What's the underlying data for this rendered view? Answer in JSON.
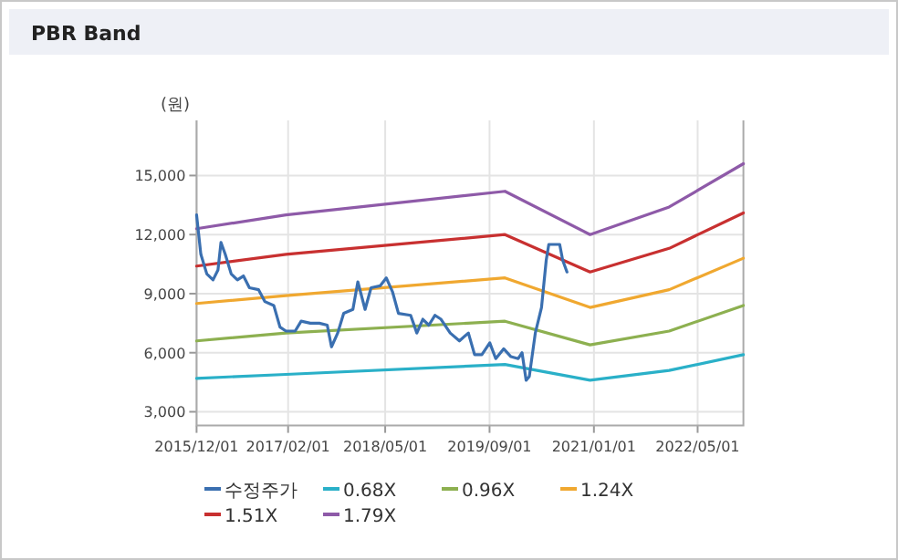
{
  "chart_data": {
    "type": "line",
    "title": "PBR Band",
    "ylabel": "(원)",
    "xlim": [
      "2015-12-01",
      "2022-12-01"
    ],
    "ylim": [
      2300,
      17800
    ],
    "xticks": [
      {
        "value": "2015-12-01",
        "label": "2015/12/01"
      },
      {
        "value": "2017-02-01",
        "label": "2017/02/01"
      },
      {
        "value": "2018-05-01",
        "label": "2018/05/01"
      },
      {
        "value": "2019-09-01",
        "label": "2019/09/01"
      },
      {
        "value": "2021-01-01",
        "label": "2021/01/01"
      },
      {
        "value": "2022-05-01",
        "label": "2022/05/01"
      }
    ],
    "yticks": [
      {
        "value": 3000,
        "label": "3,000"
      },
      {
        "value": 6000,
        "label": "6,000"
      },
      {
        "value": 9000,
        "label": "9,000"
      },
      {
        "value": 12000,
        "label": "12,000"
      },
      {
        "value": 15000,
        "label": "15,000"
      }
    ],
    "grid": true,
    "legend": "bottom",
    "series": [
      {
        "name": "수정주가",
        "color": "#3a6fb0",
        "x": [
          "2015-12-01",
          "2015-12-21",
          "2016-01-18",
          "2016-02-16",
          "2016-03-10",
          "2016-03-24",
          "2016-04-13",
          "2016-05-11",
          "2016-06-09",
          "2016-07-07",
          "2016-08-04",
          "2016-09-16",
          "2016-10-15",
          "2016-11-26",
          "2016-12-25",
          "2017-01-22",
          "2017-03-06",
          "2017-04-03",
          "2017-05-16",
          "2017-06-27",
          "2017-08-03",
          "2017-08-23",
          "2017-09-21",
          "2017-10-19",
          "2017-12-01",
          "2017-12-24",
          "2018-01-27",
          "2018-02-24",
          "2018-04-08",
          "2018-05-06",
          "2018-06-04",
          "2018-07-02",
          "2018-08-28",
          "2018-09-26",
          "2018-10-24",
          "2018-11-21",
          "2018-12-20",
          "2019-01-17",
          "2019-03-01",
          "2019-04-13",
          "2019-05-25",
          "2019-06-23",
          "2019-07-27",
          "2019-09-02",
          "2019-09-30",
          "2019-11-06",
          "2019-12-10",
          "2020-01-13",
          "2020-01-31",
          "2020-02-19",
          "2020-03-05",
          "2020-04-02",
          "2020-05-01",
          "2020-05-23",
          "2020-06-04",
          "2020-07-25",
          "2020-08-08",
          "2020-08-28"
        ],
        "values": [
          13000,
          11000,
          10000,
          9700,
          10200,
          11600,
          11000,
          10000,
          9700,
          9900,
          9300,
          9200,
          8600,
          8400,
          7300,
          7100,
          7100,
          7600,
          7500,
          7500,
          7400,
          6300,
          7000,
          8000,
          8200,
          9600,
          8200,
          9300,
          9400,
          9800,
          9100,
          8000,
          7900,
          7000,
          7700,
          7400,
          7900,
          7700,
          7000,
          6600,
          7000,
          5900,
          5900,
          6500,
          5700,
          6200,
          5800,
          5700,
          6000,
          4600,
          4800,
          7000,
          8300,
          10700,
          11500,
          11500,
          10700,
          10100
        ]
      },
      {
        "name": "0.68X",
        "color": "#2ab0c8",
        "x": [
          "2015-12-01",
          "2017-01-22",
          "2019-11-12",
          "2020-12-14",
          "2021-12-19",
          "2022-12-01"
        ],
        "values": [
          4700,
          4900,
          5400,
          4600,
          5100,
          5900
        ]
      },
      {
        "name": "0.96X",
        "color": "#8db050",
        "x": [
          "2015-12-01",
          "2017-01-22",
          "2019-11-12",
          "2020-12-14",
          "2021-12-19",
          "2022-12-01"
        ],
        "values": [
          6600,
          7000,
          7600,
          6400,
          7100,
          8400
        ]
      },
      {
        "name": "1.24X",
        "color": "#f0a830",
        "x": [
          "2015-12-01",
          "2017-01-22",
          "2019-11-12",
          "2020-12-14",
          "2021-12-19",
          "2022-12-01"
        ],
        "values": [
          8500,
          8900,
          9800,
          8300,
          9200,
          10800
        ]
      },
      {
        "name": "1.51X",
        "color": "#c83030",
        "x": [
          "2015-12-01",
          "2017-01-22",
          "2019-11-12",
          "2020-12-14",
          "2021-12-19",
          "2022-12-01"
        ],
        "values": [
          10400,
          11000,
          12000,
          10100,
          11300,
          13100
        ]
      },
      {
        "name": "1.79X",
        "color": "#8e5aa8",
        "x": [
          "2015-12-01",
          "2017-01-22",
          "2019-11-12",
          "2020-12-14",
          "2021-12-19",
          "2022-12-01"
        ],
        "values": [
          12300,
          13000,
          14200,
          12000,
          13400,
          15600
        ]
      }
    ]
  }
}
